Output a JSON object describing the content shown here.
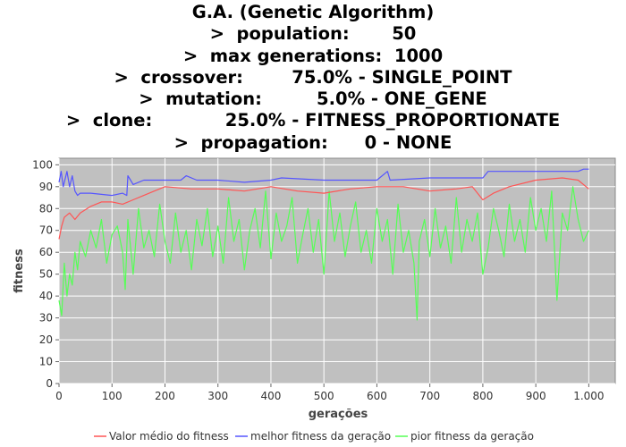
{
  "title_lines": [
    "G.A. (Genetic Algorithm)",
    ">  population:       50",
    ">  max generations:  1000",
    ">  crossover:        75.0% - SINGLE_POINT",
    ">  mutation:         5.0% - ONE_GENE",
    ">  clone:            25.0% - FITNESS_PROPORTIONATE",
    ">  propagation:      0 - NONE"
  ],
  "chart_data": {
    "type": "line",
    "xlabel": "gerações",
    "ylabel": "fitness",
    "xlim": [
      0,
      1050
    ],
    "ylim": [
      0,
      103
    ],
    "xticks": [
      0,
      100,
      200,
      300,
      400,
      500,
      600,
      700,
      800,
      900,
      1000
    ],
    "xtick_labels": [
      "0",
      "100",
      "200",
      "300",
      "400",
      "500",
      "600",
      "700",
      "800",
      "900",
      "1.000"
    ],
    "yticks": [
      0,
      10,
      20,
      30,
      40,
      50,
      60,
      70,
      80,
      90,
      100
    ],
    "grid": true,
    "legend_position": "bottom",
    "plot_background": "#c0c0c0",
    "series": [
      {
        "name": "Valor médio do fitness",
        "color": "#ff5555",
        "x": [
          0,
          5,
          10,
          20,
          30,
          40,
          60,
          80,
          100,
          120,
          140,
          160,
          180,
          200,
          250,
          300,
          350,
          400,
          450,
          500,
          550,
          600,
          650,
          700,
          750,
          780,
          800,
          820,
          850,
          900,
          950,
          980,
          1000
        ],
        "values": [
          66,
          72,
          76,
          78,
          75,
          78,
          81,
          83,
          83,
          82,
          84,
          86,
          88,
          90,
          89,
          89,
          88,
          90,
          88,
          87,
          89,
          90,
          90,
          88,
          89,
          90,
          84,
          87,
          90,
          93,
          94,
          93,
          89
        ]
      },
      {
        "name": "melhor fitness da geração",
        "color": "#5555ff",
        "x": [
          0,
          4,
          8,
          15,
          20,
          25,
          30,
          35,
          40,
          60,
          100,
          120,
          128,
          130,
          135,
          140,
          150,
          160,
          180,
          200,
          230,
          240,
          260,
          300,
          350,
          400,
          420,
          500,
          600,
          620,
          625,
          700,
          800,
          810,
          840,
          900,
          980,
          990,
          1000
        ],
        "values": [
          92,
          97,
          90,
          97,
          90,
          95,
          88,
          86,
          87,
          87,
          86,
          87,
          86,
          95,
          93,
          91,
          92,
          93,
          93,
          93,
          93,
          95,
          93,
          93,
          92,
          93,
          94,
          93,
          93,
          97,
          93,
          94,
          94,
          97,
          97,
          97,
          97,
          98,
          98
        ]
      },
      {
        "name": "pior fitness da geração",
        "color": "#55ff55",
        "x": [
          0,
          5,
          10,
          15,
          20,
          25,
          30,
          35,
          40,
          50,
          60,
          70,
          80,
          90,
          100,
          110,
          120,
          125,
          130,
          140,
          150,
          160,
          170,
          180,
          190,
          200,
          210,
          220,
          230,
          240,
          250,
          260,
          270,
          280,
          290,
          300,
          310,
          320,
          330,
          340,
          350,
          360,
          370,
          380,
          390,
          400,
          410,
          420,
          430,
          440,
          450,
          460,
          470,
          480,
          490,
          500,
          510,
          520,
          530,
          540,
          550,
          560,
          570,
          580,
          590,
          600,
          610,
          620,
          630,
          640,
          650,
          660,
          670,
          676,
          680,
          690,
          700,
          710,
          720,
          730,
          740,
          750,
          760,
          770,
          780,
          790,
          800,
          810,
          820,
          830,
          840,
          850,
          860,
          870,
          880,
          890,
          900,
          910,
          920,
          930,
          940,
          950,
          960,
          970,
          980,
          990,
          1000
        ],
        "values": [
          38,
          31,
          55,
          40,
          50,
          45,
          60,
          52,
          65,
          58,
          70,
          62,
          75,
          55,
          68,
          72,
          60,
          43,
          75,
          50,
          80,
          62,
          70,
          58,
          82,
          65,
          55,
          78,
          60,
          70,
          52,
          75,
          63,
          80,
          58,
          72,
          55,
          85,
          65,
          75,
          52,
          70,
          80,
          62,
          88,
          57,
          78,
          65,
          72,
          85,
          55,
          68,
          80,
          60,
          75,
          50,
          88,
          65,
          78,
          58,
          72,
          83,
          60,
          70,
          55,
          80,
          65,
          75,
          50,
          82,
          60,
          70,
          55,
          29,
          65,
          75,
          58,
          80,
          62,
          72,
          55,
          85,
          60,
          75,
          65,
          78,
          50,
          62,
          80,
          70,
          58,
          82,
          65,
          75,
          60,
          85,
          70,
          80,
          65,
          88,
          38,
          78,
          70,
          90,
          75,
          65,
          70
        ]
      }
    ]
  }
}
